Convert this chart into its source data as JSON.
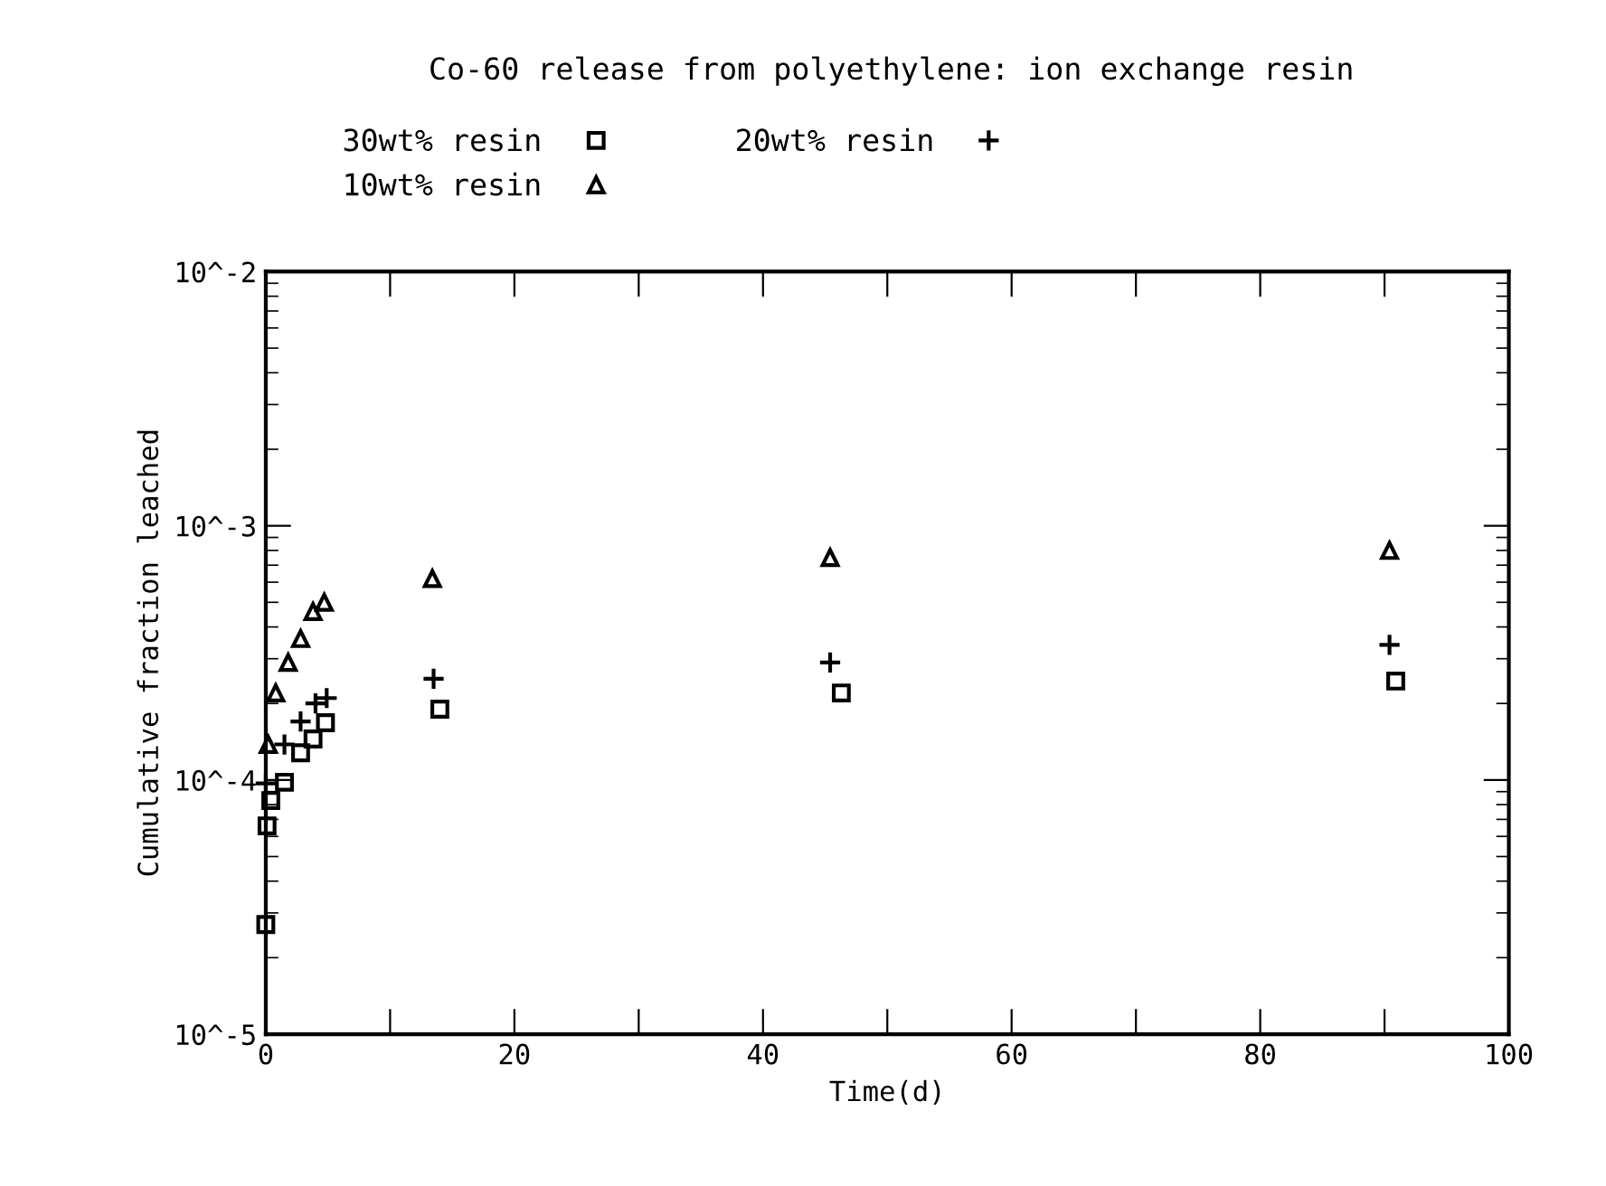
{
  "chart_data": {
    "type": "scatter",
    "title": "Co-60 release from polyethylene: ion exchange resin",
    "xlabel": "Time(d)",
    "ylabel": "Cumulative fraction leached",
    "log": "y",
    "grid": false,
    "legend": "top",
    "xlim": [
      0,
      100
    ],
    "xticks": [
      0,
      {
        "value": 10,
        "label": null
      },
      20,
      {
        "value": 30,
        "label": null
      },
      40,
      {
        "value": 50,
        "label": null
      },
      60,
      {
        "value": 70,
        "label": null
      },
      80,
      {
        "value": 90,
        "label": null
      },
      100
    ],
    "ylim": [
      1e-05,
      0.01
    ],
    "yticks": [
      {
        "value": 1e-05,
        "label": "10^-5"
      },
      {
        "value": 0.0001,
        "label": "10^-4"
      },
      {
        "value": 0.001,
        "label": "10^-3"
      },
      {
        "value": 0.01,
        "label": "10^-2"
      }
    ],
    "series": [
      {
        "name": "30wt% resin",
        "color": "#000000",
        "marker": "square",
        "x": [
          0,
          0.1,
          0.4,
          1.5,
          2.8,
          3.8,
          4.8,
          14,
          46.3,
          90.9
        ],
        "values": [
          2.7e-05,
          6.6e-05,
          8.3e-05,
          9.8e-05,
          0.000128,
          0.000145,
          0.000168,
          0.00019,
          0.00022,
          0.000245
        ]
      },
      {
        "name": "20wt% resin",
        "color": "#000000",
        "marker": "cross",
        "x": [
          0,
          1.5,
          2.8,
          4,
          4.9,
          13.5,
          45.4,
          90.4
        ],
        "values": [
          9.7e-05,
          0.000138,
          0.00017,
          0.0002,
          0.00021,
          0.00025,
          0.00029,
          0.00034
        ]
      },
      {
        "name": "10wt% resin",
        "color": "#000000",
        "marker": "triangle",
        "x": [
          0.2,
          0.8,
          1.8,
          2.8,
          3.8,
          4.7,
          13.4,
          45.4,
          90.4
        ],
        "values": [
          0.000138,
          0.00022,
          0.00029,
          0.00036,
          0.00046,
          0.0005,
          0.00062,
          0.00075,
          0.0008
        ]
      }
    ]
  }
}
